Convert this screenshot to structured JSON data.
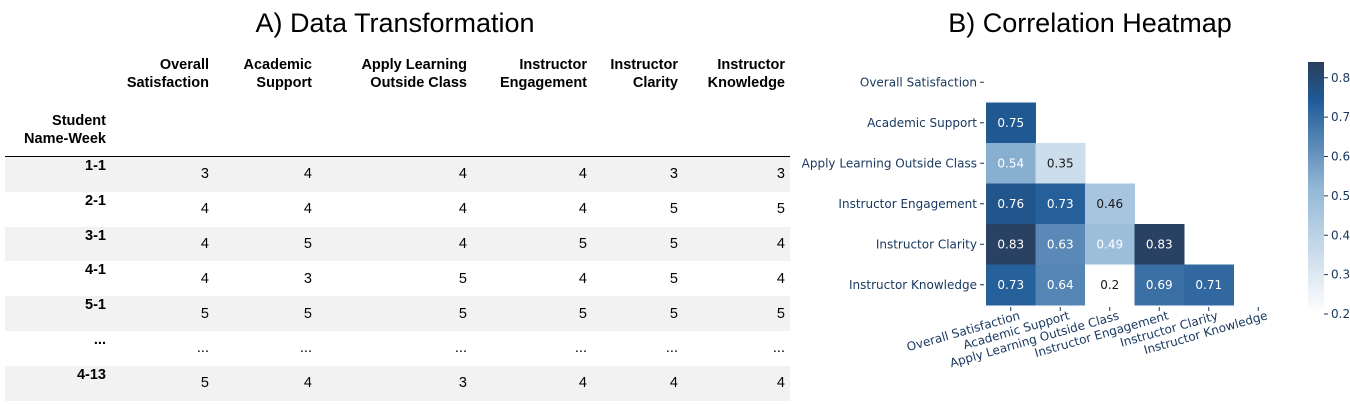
{
  "panel_a": {
    "title": "A) Data Transformation",
    "index_header": [
      "Student",
      "Name-Week"
    ],
    "columns": [
      [
        "Overall",
        "Satisfaction"
      ],
      [
        "Academic",
        "Support"
      ],
      [
        "Apply Learning",
        "Outside Class"
      ],
      [
        "Instructor",
        "Engagement"
      ],
      [
        "Instructor",
        "Clarity"
      ],
      [
        "Instructor",
        "Knowledge"
      ]
    ],
    "rows": [
      {
        "index": "1-1",
        "values": [
          "3",
          "4",
          "4",
          "4",
          "3",
          "3"
        ]
      },
      {
        "index": "2-1",
        "values": [
          "4",
          "4",
          "4",
          "4",
          "5",
          "5"
        ]
      },
      {
        "index": "3-1",
        "values": [
          "4",
          "5",
          "4",
          "5",
          "5",
          "4"
        ]
      },
      {
        "index": "4-1",
        "values": [
          "4",
          "3",
          "5",
          "4",
          "5",
          "4"
        ]
      },
      {
        "index": "5-1",
        "values": [
          "5",
          "5",
          "5",
          "5",
          "5",
          "5"
        ]
      },
      {
        "index": "...",
        "values": [
          "...",
          "...",
          "...",
          "...",
          "...",
          "..."
        ]
      },
      {
        "index": "4-13",
        "values": [
          "5",
          "4",
          "3",
          "4",
          "4",
          "4"
        ]
      }
    ]
  },
  "chart_data": {
    "type": "heatmap",
    "title": "B) Correlation Heatmap",
    "labels": [
      "Overall Satisfaction",
      "Academic Support",
      "Apply Learning Outside Class",
      "Instructor Engagement",
      "Instructor Clarity",
      "Instructor Knowledge"
    ],
    "matrix_lower": [
      [],
      [
        0.75
      ],
      [
        0.54,
        0.35
      ],
      [
        0.76,
        0.73,
        0.46
      ],
      [
        0.83,
        0.63,
        0.49,
        0.83
      ],
      [
        0.73,
        0.64,
        0.2,
        0.69,
        0.71
      ]
    ],
    "value_labels": [
      [],
      [
        "0.75"
      ],
      [
        "0.54",
        "0.35"
      ],
      [
        "0.76",
        "0.73",
        "0.46"
      ],
      [
        "0.83",
        "0.63",
        "0.49",
        "0.83"
      ],
      [
        "0.73",
        "0.64",
        "0.2",
        "0.69",
        "0.71"
      ]
    ],
    "colorbar": {
      "range": [
        0.2,
        0.84
      ],
      "ticks": [
        "0.2",
        "0.3",
        "0.4",
        "0.5",
        "0.6",
        "0.7",
        "0.8"
      ]
    },
    "colors": {
      "low": "#ffffff",
      "mid": "#93b7d6",
      "high": "#1f5a96",
      "max": "#2a3e5c",
      "label": "#17375e"
    }
  }
}
